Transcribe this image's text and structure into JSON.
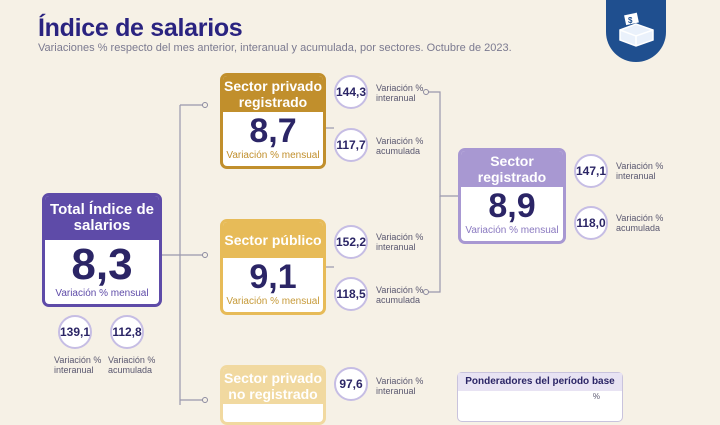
{
  "header": {
    "title": "Índice de salarios",
    "subtitle": "Variaciones % respecto del mes anterior, interanual y acumulada, por sectores. Octubre de 2023."
  },
  "logo": {
    "icon": "money-box-icon",
    "color": "#1f4f8f"
  },
  "total": {
    "title": "Total Índice de salarios",
    "value": "8,3",
    "value_label": "Variación % mensual",
    "interanual": "139,1",
    "interanual_label": "Variación % interanual",
    "acumulada": "112,8",
    "acumulada_label": "Variación % acumulada"
  },
  "privado_registrado": {
    "title": "Sector privado registrado",
    "value": "8,7",
    "value_label": "Variación % mensual",
    "interanual": "144,3",
    "interanual_label": "Variación % interanual",
    "acumulada": "117,7",
    "acumulada_label": "Variación % acumulada"
  },
  "publico": {
    "title": "Sector público",
    "value": "9,1",
    "value_label": "Variación % mensual",
    "interanual": "152,2",
    "interanual_label": "Variación % interanual",
    "acumulada": "118,5",
    "acumulada_label": "Variación % acumulada"
  },
  "privado_no_registrado": {
    "title": "Sector privado no registrado",
    "interanual": "97,6",
    "interanual_label": "Variación % interanual"
  },
  "registrado": {
    "title": "Sector registrado",
    "value": "8,9",
    "value_label": "Variación % mensual",
    "interanual": "147,1",
    "interanual_label": "Variación % interanual",
    "acumulada": "118,0",
    "acumulada_label": "Variación % acumulada"
  },
  "ponderadores": {
    "title": "Ponderadores del período base",
    "unit": "%"
  },
  "colors": {
    "total": "#5e4ba8",
    "privado_registrado": "#c18f2c",
    "publico": "#e7bb58",
    "privado_no_registrado": "#f1d9a0",
    "registrado": "#a898d2"
  }
}
